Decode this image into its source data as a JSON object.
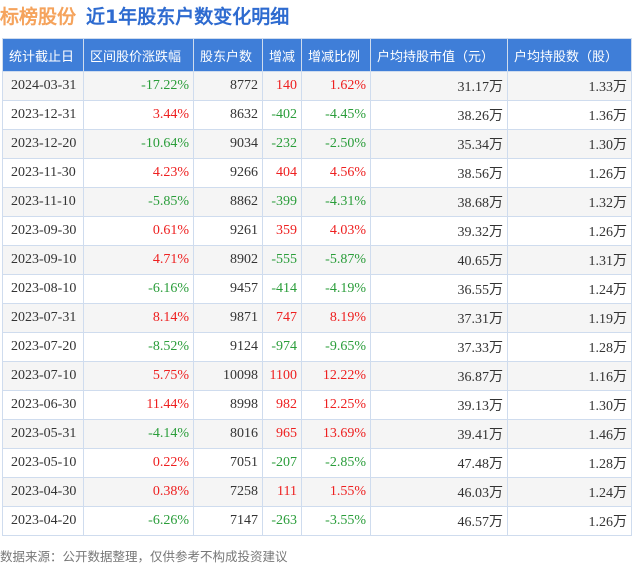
{
  "title": {
    "brand": "标榜股份",
    "subtitle": "近1年股东户数变化明细"
  },
  "colors": {
    "header_bg": "#3f7ed8",
    "up": "#ee2020",
    "down": "#2a9d3a",
    "brand": "#f5a35c",
    "subtitle": "#2e6bd0"
  },
  "table": {
    "headers": [
      "统计截止日",
      "区间股价涨跌幅",
      "股东户数",
      "增减",
      "增减比例",
      "户均持股市值（元）",
      "户均持股数（股）"
    ],
    "rows": [
      [
        "2024-03-31",
        "-17.22%",
        "8772",
        "140",
        "1.62%",
        "31.17万",
        "1.33万"
      ],
      [
        "2023-12-31",
        "3.44%",
        "8632",
        "-402",
        "-4.45%",
        "38.26万",
        "1.36万"
      ],
      [
        "2023-12-20",
        "-10.64%",
        "9034",
        "-232",
        "-2.50%",
        "35.34万",
        "1.30万"
      ],
      [
        "2023-11-30",
        "4.23%",
        "9266",
        "404",
        "4.56%",
        "38.56万",
        "1.26万"
      ],
      [
        "2023-11-10",
        "-5.85%",
        "8862",
        "-399",
        "-4.31%",
        "38.68万",
        "1.32万"
      ],
      [
        "2023-09-30",
        "0.61%",
        "9261",
        "359",
        "4.03%",
        "39.32万",
        "1.26万"
      ],
      [
        "2023-09-10",
        "4.71%",
        "8902",
        "-555",
        "-5.87%",
        "40.65万",
        "1.31万"
      ],
      [
        "2023-08-10",
        "-6.16%",
        "9457",
        "-414",
        "-4.19%",
        "36.55万",
        "1.24万"
      ],
      [
        "2023-07-31",
        "8.14%",
        "9871",
        "747",
        "8.19%",
        "37.31万",
        "1.19万"
      ],
      [
        "2023-07-20",
        "-8.52%",
        "9124",
        "-974",
        "-9.65%",
        "37.33万",
        "1.28万"
      ],
      [
        "2023-07-10",
        "5.75%",
        "10098",
        "1100",
        "12.22%",
        "36.87万",
        "1.16万"
      ],
      [
        "2023-06-30",
        "11.44%",
        "8998",
        "982",
        "12.25%",
        "39.13万",
        "1.30万"
      ],
      [
        "2023-05-31",
        "-4.14%",
        "8016",
        "965",
        "13.69%",
        "39.41万",
        "1.46万"
      ],
      [
        "2023-05-10",
        "0.22%",
        "7051",
        "-207",
        "-2.85%",
        "47.48万",
        "1.28万"
      ],
      [
        "2023-04-30",
        "0.38%",
        "7258",
        "111",
        "1.55%",
        "46.03万",
        "1.24万"
      ],
      [
        "2023-04-20",
        "-6.26%",
        "7147",
        "-263",
        "-3.55%",
        "46.57万",
        "1.26万"
      ]
    ]
  },
  "footer": "数据来源：公开数据整理，仅供参考不构成投资建议"
}
